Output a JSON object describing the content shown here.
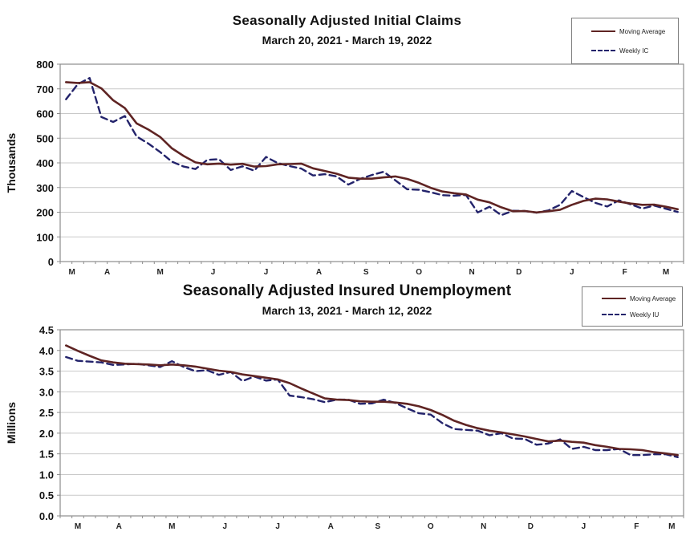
{
  "colors": {
    "moving_average": "#5f2423",
    "weekly": "#23236b",
    "gridline": "#c9c9c9",
    "axis": "#8c8c8c",
    "text": "#111111"
  },
  "chart_data": [
    {
      "type": "line",
      "title": "Seasonally Adjusted Initial Claims",
      "subtitle": "March 20, 2021 - March 19, 2022",
      "ylabel": "Thousands",
      "xlabel": "",
      "ylim": [
        0,
        800
      ],
      "ytick_step": 100,
      "ytick_decimals": 0,
      "grid": true,
      "legend_position": "top-right",
      "x_tick_labels": [
        "M",
        "A",
        "M",
        "J",
        "J",
        "A",
        "S",
        "O",
        "N",
        "D",
        "J",
        "F",
        "M"
      ],
      "month_week_counts": [
        2,
        4,
        5,
        4,
        5,
        4,
        4,
        5,
        4,
        4,
        5,
        4,
        3
      ],
      "series": [
        {
          "name": "Moving Average",
          "style": "solid",
          "color": "#5f2423",
          "values": [
            727,
            724,
            727,
            702,
            654,
            622,
            560,
            535,
            505,
            459,
            428,
            402,
            394,
            397,
            393,
            396,
            385,
            387,
            394,
            395,
            397,
            378,
            367,
            356,
            340,
            336,
            336,
            341,
            345,
            335,
            319,
            299,
            284,
            277,
            272,
            251,
            240,
            220,
            204,
            205,
            199,
            204,
            210,
            230,
            246,
            255,
            252,
            243,
            235,
            230,
            231,
            222,
            212
          ]
        },
        {
          "name": "Weekly IC",
          "style": "dashed",
          "color": "#23236b",
          "values": [
            658,
            719,
            744,
            586,
            566,
            590,
            507,
            478,
            444,
            405,
            385,
            375,
            412,
            415,
            371,
            386,
            368,
            424,
            399,
            387,
            377,
            349,
            354,
            345,
            312,
            335,
            351,
            364,
            329,
            293,
            291,
            281,
            269,
            267,
            270,
            199,
            222,
            188,
            206,
            205,
            198,
            207,
            230,
            286,
            261,
            238,
            223,
            248,
            232,
            215,
            227,
            214,
            201
          ]
        }
      ]
    },
    {
      "type": "line",
      "title": "Seasonally Adjusted Insured Unemployment",
      "subtitle": "March 13, 2021 - March 12, 2022",
      "ylabel": "Millions",
      "xlabel": "",
      "ylim": [
        0,
        4.5
      ],
      "ytick_step": 0.5,
      "ytick_decimals": 1,
      "grid": true,
      "legend_position": "top-right",
      "x_tick_labels": [
        "M",
        "A",
        "M",
        "J",
        "J",
        "A",
        "S",
        "O",
        "N",
        "D",
        "J",
        "F",
        "M"
      ],
      "month_week_counts": [
        3,
        4,
        5,
        4,
        5,
        4,
        4,
        5,
        4,
        4,
        5,
        4,
        2
      ],
      "series": [
        {
          "name": "Moving Average",
          "style": "solid",
          "color": "#5f2423",
          "values": [
            4.12,
            3.99,
            3.87,
            3.76,
            3.71,
            3.68,
            3.67,
            3.66,
            3.64,
            3.66,
            3.64,
            3.61,
            3.56,
            3.51,
            3.48,
            3.42,
            3.38,
            3.34,
            3.3,
            3.21,
            3.08,
            2.96,
            2.84,
            2.81,
            2.8,
            2.77,
            2.76,
            2.76,
            2.74,
            2.71,
            2.65,
            2.56,
            2.44,
            2.3,
            2.2,
            2.12,
            2.06,
            2.02,
            1.97,
            1.92,
            1.86,
            1.8,
            1.82,
            1.79,
            1.77,
            1.71,
            1.67,
            1.62,
            1.61,
            1.59,
            1.54,
            1.51,
            1.47
          ]
        },
        {
          "name": "Weekly IU",
          "style": "dashed",
          "color": "#23236b",
          "values": [
            3.84,
            3.75,
            3.73,
            3.71,
            3.65,
            3.66,
            3.68,
            3.64,
            3.6,
            3.74,
            3.6,
            3.5,
            3.52,
            3.41,
            3.48,
            3.26,
            3.37,
            3.27,
            3.3,
            2.91,
            2.87,
            2.82,
            2.75,
            2.81,
            2.81,
            2.71,
            2.72,
            2.81,
            2.73,
            2.6,
            2.48,
            2.45,
            2.24,
            2.1,
            2.08,
            2.06,
            1.95,
            2.0,
            1.87,
            1.86,
            1.72,
            1.75,
            1.85,
            1.62,
            1.67,
            1.59,
            1.59,
            1.62,
            1.47,
            1.47,
            1.49,
            1.49,
            1.42
          ]
        }
      ]
    }
  ]
}
